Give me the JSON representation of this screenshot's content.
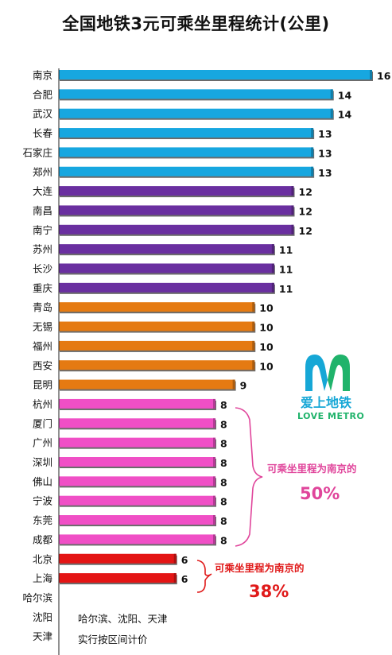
{
  "chart_data": {
    "type": "bar",
    "orientation": "horizontal",
    "title": "全国地铁3元可乘坐里程统计(公里)",
    "categories": [
      "南京",
      "合肥",
      "武汉",
      "长春",
      "石家庄",
      "郑州",
      "大连",
      "南昌",
      "南宁",
      "苏州",
      "长沙",
      "重庆",
      "青岛",
      "无锡",
      "福州",
      "西安",
      "昆明",
      "杭州",
      "厦门",
      "广州",
      "深圳",
      "佛山",
      "宁波",
      "东莞",
      "成都",
      "北京",
      "上海",
      "哈尔滨",
      "沈阳",
      "天津"
    ],
    "values": [
      16,
      14,
      14,
      13,
      13,
      13,
      12,
      12,
      12,
      11,
      11,
      11,
      10,
      10,
      10,
      10,
      9,
      8,
      8,
      8,
      8,
      8,
      8,
      8,
      8,
      6,
      6,
      null,
      null,
      null
    ],
    "bar_colors": [
      "#17a7e0",
      "#17a7e0",
      "#17a7e0",
      "#17a7e0",
      "#17a7e0",
      "#17a7e0",
      "#6a2fa0",
      "#6a2fa0",
      "#6a2fa0",
      "#6a2fa0",
      "#6a2fa0",
      "#6a2fa0",
      "#e57a12",
      "#e57a12",
      "#e57a12",
      "#e57a12",
      "#e57a12",
      "#f04fc6",
      "#f04fc6",
      "#f04fc6",
      "#f04fc6",
      "#f04fc6",
      "#f04fc6",
      "#f04fc6",
      "#f04fc6",
      "#e41515",
      "#e41515",
      null,
      null,
      null
    ],
    "xlim": [
      0,
      16
    ],
    "grid": false,
    "legend": "none",
    "annotations": {
      "pink_group": {
        "text": "可乘坐里程为南京的",
        "percent": "50%",
        "color": "#e0459b"
      },
      "red_group": {
        "text": "可乘坐里程为南京的",
        "percent": "38%",
        "color": "#e01a1a"
      },
      "note_lines": [
        "哈尔滨、沈阳、天津",
        "实行按区间计价"
      ]
    }
  },
  "logo": {
    "text": "爱上地铁",
    "subtext": "LOVE METRO",
    "colors": {
      "left": "#16a7d6",
      "right": "#20b36b"
    }
  }
}
